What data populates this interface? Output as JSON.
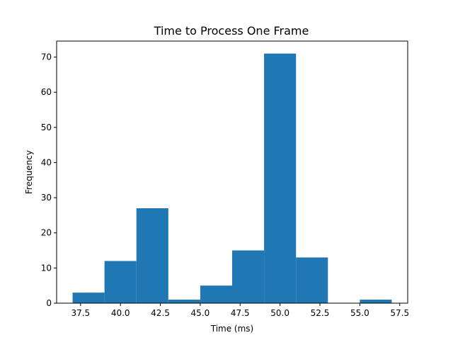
{
  "chart_data": {
    "type": "bar",
    "title": "Time to Process One Frame",
    "xlabel": "Time (ms)",
    "ylabel": "Frequency",
    "xlim": [
      36.0,
      58.0
    ],
    "ylim": [
      0,
      74.55
    ],
    "bar_color": "#1f77b4",
    "bins": [
      {
        "start": 37.0,
        "end": 39.0,
        "count": 3
      },
      {
        "start": 39.0,
        "end": 41.0,
        "count": 12
      },
      {
        "start": 41.0,
        "end": 43.0,
        "count": 27
      },
      {
        "start": 43.0,
        "end": 45.0,
        "count": 1
      },
      {
        "start": 45.0,
        "end": 47.0,
        "count": 5
      },
      {
        "start": 47.0,
        "end": 49.0,
        "count": 15
      },
      {
        "start": 49.0,
        "end": 51.0,
        "count": 71
      },
      {
        "start": 51.0,
        "end": 53.0,
        "count": 13
      },
      {
        "start": 53.0,
        "end": 55.0,
        "count": 0
      },
      {
        "start": 55.0,
        "end": 57.0,
        "count": 1
      }
    ],
    "xticks": [
      "37.5",
      "40.0",
      "42.5",
      "45.0",
      "47.5",
      "50.0",
      "52.5",
      "55.0",
      "57.5"
    ],
    "yticks": [
      "0",
      "10",
      "20",
      "30",
      "40",
      "50",
      "60",
      "70"
    ],
    "grid": false,
    "legend": "none"
  }
}
